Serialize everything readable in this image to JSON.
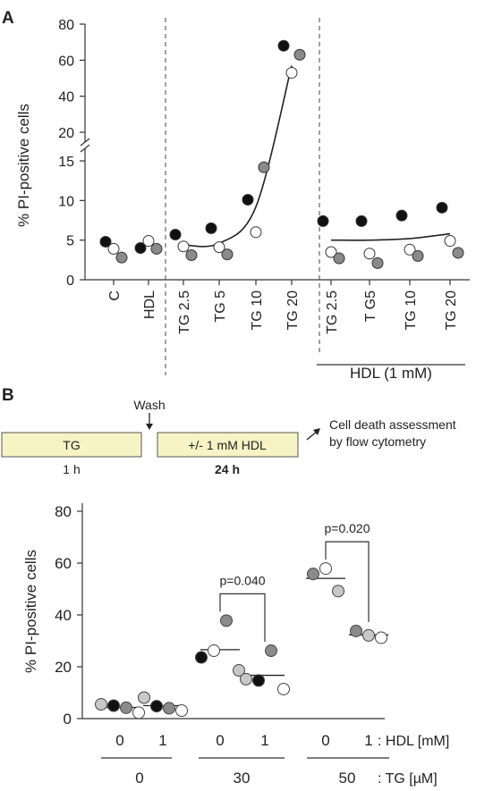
{
  "chart_data": [
    {
      "panel": "A",
      "type": "scatter",
      "ylabel": "% PI-positive cells",
      "categories": [
        "C",
        "HDL",
        "TG 2.5",
        "TG 5",
        "TG 10",
        "TG 20",
        "TG 2.5",
        "T G5",
        "TG 10",
        "TG 20"
      ],
      "group_label": "HDL (1 mM)",
      "y_ticks_lower": [
        0,
        5,
        10,
        15
      ],
      "y_ticks_upper": [
        20,
        40,
        60,
        80
      ],
      "axis_break": [
        15,
        20
      ],
      "series": [
        {
          "color": "#111111",
          "values": [
            4.8,
            4.0,
            5.7,
            6.5,
            10.1,
            68,
            7.4,
            7.4,
            8.1,
            9.1
          ]
        },
        {
          "color": "#ffffff",
          "values": [
            3.9,
            4.9,
            4.2,
            4.1,
            6.0,
            53,
            3.5,
            3.3,
            3.8,
            4.9
          ]
        },
        {
          "color": "#8a8a8a",
          "values": [
            2.8,
            3.9,
            3.1,
            3.2,
            14.2,
            63,
            2.7,
            2.1,
            3.0,
            3.4
          ]
        }
      ],
      "fit_curves": [
        {
          "x_from": 2,
          "x_to": 5,
          "points": [
            [
              2,
              4.4
            ],
            [
              3,
              4.6
            ],
            [
              4,
              9.2
            ],
            [
              5,
              57
            ]
          ]
        },
        {
          "x_from": 6,
          "x_to": 9,
          "points": [
            [
              6,
              5.0
            ],
            [
              7,
              5.0
            ],
            [
              8,
              5.2
            ],
            [
              9,
              5.8
            ]
          ]
        }
      ],
      "colors": {
        "black": "#111111",
        "white": "#ffffff",
        "gray": "#8a8a8a"
      }
    },
    {
      "panel": "B",
      "type": "scatter",
      "ylabel": "% PI-positive cells",
      "ylim": [
        0,
        80
      ],
      "y_ticks": [
        0,
        20,
        40,
        60,
        80
      ],
      "hdl_labels": [
        "0",
        "1",
        "0",
        "1",
        "0",
        "1"
      ],
      "hdl_axis_label": ": HDL [mM]",
      "tg_labels": [
        "0",
        "30",
        "50"
      ],
      "tg_axis_label": ": TG [µM]",
      "groups": [
        {
          "points": [
            {
              "v": 5.5,
              "c": "light"
            },
            {
              "v": 5.0,
              "c": "black"
            },
            {
              "v": 4.2,
              "c": "gray"
            },
            {
              "v": 2.3,
              "c": "white"
            }
          ],
          "mean": 4.3
        },
        {
          "points": [
            {
              "v": 8.1,
              "c": "light"
            },
            {
              "v": 4.8,
              "c": "black"
            },
            {
              "v": 4.0,
              "c": "gray"
            },
            {
              "v": 3.1,
              "c": "white"
            }
          ],
          "mean": 5.0
        },
        {
          "points": [
            {
              "v": 23.6,
              "c": "black"
            },
            {
              "v": 26.2,
              "c": "white"
            },
            {
              "v": 37.8,
              "c": "gray"
            },
            {
              "v": 18.6,
              "c": "light"
            }
          ],
          "mean": 26.6
        },
        {
          "points": [
            {
              "v": 15.2,
              "c": "light"
            },
            {
              "v": 14.7,
              "c": "black"
            },
            {
              "v": 26.2,
              "c": "gray"
            },
            {
              "v": 11.4,
              "c": "white"
            }
          ],
          "mean": 16.7
        },
        {
          "points": [
            {
              "v": 55.8,
              "c": "gray"
            },
            {
              "v": 57.9,
              "c": "white"
            },
            {
              "v": 49.2,
              "c": "light"
            }
          ],
          "mean": 54.1
        },
        {
          "points": [
            {
              "v": 33.8,
              "c": "gray"
            },
            {
              "v": 32.1,
              "c": "light"
            },
            {
              "v": 31.2,
              "c": "white"
            }
          ],
          "mean": 32.3
        }
      ],
      "p_values": [
        {
          "label": "p=0.040",
          "from_group": 2,
          "to_group": 3
        },
        {
          "label": "p=0.020",
          "from_group": 4,
          "to_group": 5
        }
      ],
      "colors": {
        "black": "#111111",
        "white": "#ffffff",
        "gray": "#8a8a8a",
        "light": "#c8c8c8"
      }
    }
  ],
  "panels": {
    "a_label": "A",
    "b_label": "B"
  },
  "protocol": {
    "tg_box": "TG",
    "tg_time": "1 h",
    "wash": "Wash",
    "hdl_box": "+/- 1 mM HDL",
    "hdl_time": "24 h",
    "assessment_line1": "Cell death assessment",
    "assessment_line2": "by flow cytometry",
    "box_fill": "#f6f4c4"
  }
}
